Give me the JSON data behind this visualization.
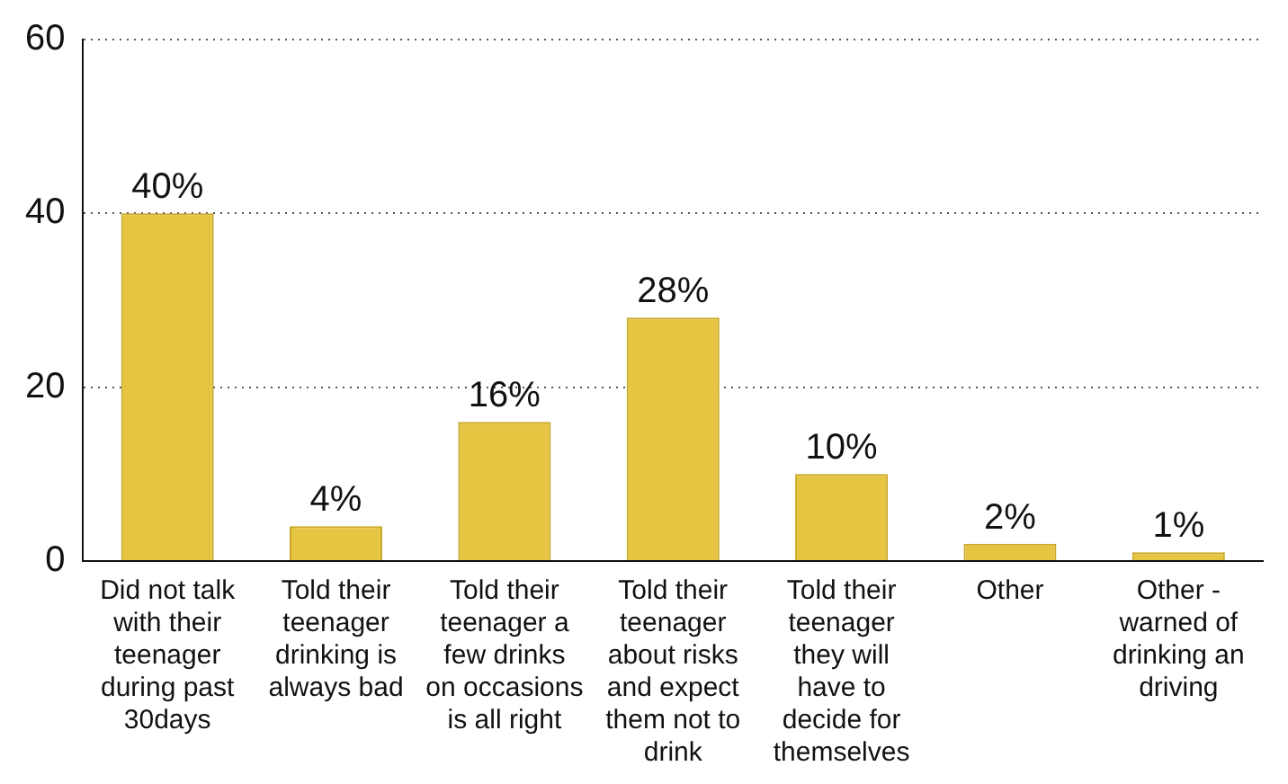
{
  "chart_data": {
    "type": "bar",
    "categories": [
      "Did not talk with their teenager during past 30days",
      "Told their teenager drinking is always bad",
      "Told their teenager a few drinks on occasions is all right",
      "Told their teenager about risks and expect them not to drink",
      "Told their teenager they will have to decide for themselves",
      "Other",
      "Other - warned of drinking an driving"
    ],
    "values": [
      40,
      4,
      16,
      28,
      10,
      2,
      1
    ],
    "value_labels": [
      "40%",
      "4%",
      "16%",
      "28%",
      "10%",
      "2%",
      "1%"
    ],
    "color": "#e6c542",
    "ylim": [
      0,
      60
    ],
    "yticks": [
      0,
      20,
      40,
      60
    ],
    "grid": "y",
    "legend": false
  }
}
